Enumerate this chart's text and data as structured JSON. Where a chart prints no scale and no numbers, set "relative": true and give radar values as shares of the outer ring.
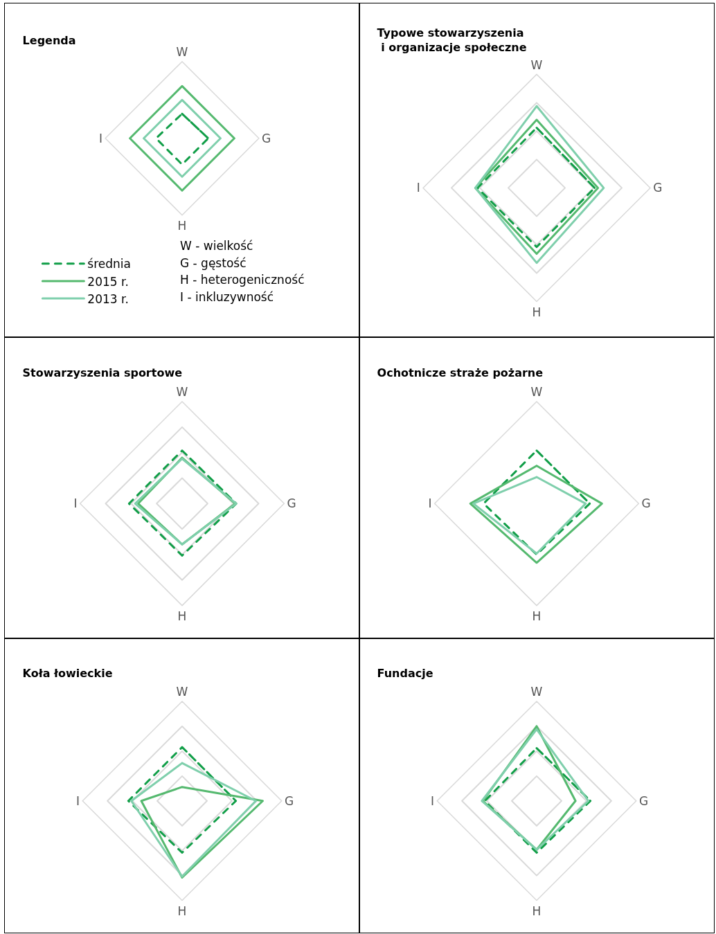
{
  "chart_data": [
    {
      "type": "radar",
      "title": "Legenda",
      "relative": true,
      "categories": [
        "W",
        "G",
        "H",
        "I"
      ],
      "grid": false,
      "legend": "bottom left",
      "marker": "none",
      "series": [
        {
          "name": "średnia",
          "color": "#119e48",
          "line_style": "dashed",
          "values": [
            0.32,
            0.34,
            0.34,
            0.34
          ]
        },
        {
          "name": "2015 r.",
          "color": "#55b96f",
          "line_style": "solid",
          "values": [
            0.68,
            0.68,
            0.68,
            0.68
          ]
        },
        {
          "name": "2013 r.",
          "color": "#7fcfac",
          "line_style": "solid",
          "values": [
            0.5,
            0.5,
            0.5,
            0.5
          ]
        }
      ],
      "annotations": [
        "W - wielkość",
        "G - gęstość",
        "H - heterogeniczność",
        "I - inkluzywność"
      ]
    },
    {
      "type": "radar",
      "title": "Typowe stowarzyszenia\n i organizacje społeczne",
      "relative": true,
      "categories": [
        "W",
        "G",
        "H",
        "I"
      ],
      "grid": true,
      "marker": "none",
      "series": [
        {
          "color": "#119e48",
          "line_style": "dashed",
          "values": [
            0.53,
            0.51,
            0.52,
            0.52
          ]
        },
        {
          "color": "#55b96f",
          "line_style": "solid",
          "values": [
            0.6,
            0.54,
            0.58,
            0.54
          ]
        },
        {
          "color": "#7fcfac",
          "line_style": "solid",
          "values": [
            0.72,
            0.59,
            0.66,
            0.54
          ]
        }
      ]
    },
    {
      "type": "radar",
      "title": "Stowarzyszenia sportowe",
      "relative": true,
      "categories": [
        "W",
        "G",
        "H",
        "I"
      ],
      "grid": true,
      "marker": "none",
      "series": [
        {
          "color": "#119e48",
          "line_style": "dashed",
          "values": [
            0.52,
            0.53,
            0.51,
            0.52
          ]
        },
        {
          "color": "#55b96f",
          "line_style": "solid",
          "values": [
            0.45,
            0.52,
            0.4,
            0.43
          ]
        },
        {
          "color": "#7fcfac",
          "line_style": "solid",
          "values": [
            0.44,
            0.53,
            0.4,
            0.46
          ]
        }
      ]
    },
    {
      "type": "radar",
      "title": "Ochotnicze straże pożarne",
      "relative": true,
      "categories": [
        "W",
        "G",
        "H",
        "I"
      ],
      "grid": false,
      "marker": "none",
      "series": [
        {
          "color": "#119e48",
          "line_style": "dashed",
          "values": [
            0.52,
            0.52,
            0.5,
            0.52
          ]
        },
        {
          "color": "#55b96f",
          "line_style": "solid",
          "values": [
            0.37,
            0.64,
            0.58,
            0.65
          ]
        },
        {
          "color": "#7fcfac",
          "line_style": "solid",
          "values": [
            0.26,
            0.48,
            0.49,
            0.62
          ]
        }
      ]
    },
    {
      "type": "radar",
      "title": "Koła łowieckie",
      "relative": true,
      "categories": [
        "W",
        "G",
        "H",
        "I"
      ],
      "grid": true,
      "marker": "none",
      "series": [
        {
          "color": "#119e48",
          "line_style": "dashed",
          "values": [
            0.54,
            0.54,
            0.52,
            0.54
          ]
        },
        {
          "color": "#55b96f",
          "line_style": "solid",
          "values": [
            0.14,
            0.81,
            0.77,
            0.41
          ]
        },
        {
          "color": "#7fcfac",
          "line_style": "solid",
          "values": [
            0.38,
            0.74,
            0.76,
            0.51
          ]
        }
      ]
    },
    {
      "type": "radar",
      "title": "Fundacje",
      "relative": true,
      "categories": [
        "W",
        "G",
        "H",
        "I"
      ],
      "grid": true,
      "marker": "none",
      "series": [
        {
          "color": "#119e48",
          "line_style": "dashed",
          "values": [
            0.53,
            0.54,
            0.52,
            0.52
          ]
        },
        {
          "color": "#55b96f",
          "line_style": "solid",
          "values": [
            0.75,
            0.39,
            0.49,
            0.54
          ]
        },
        {
          "color": "#7fcfac",
          "line_style": "solid",
          "values": [
            0.72,
            0.52,
            0.49,
            0.55
          ]
        }
      ]
    }
  ]
}
